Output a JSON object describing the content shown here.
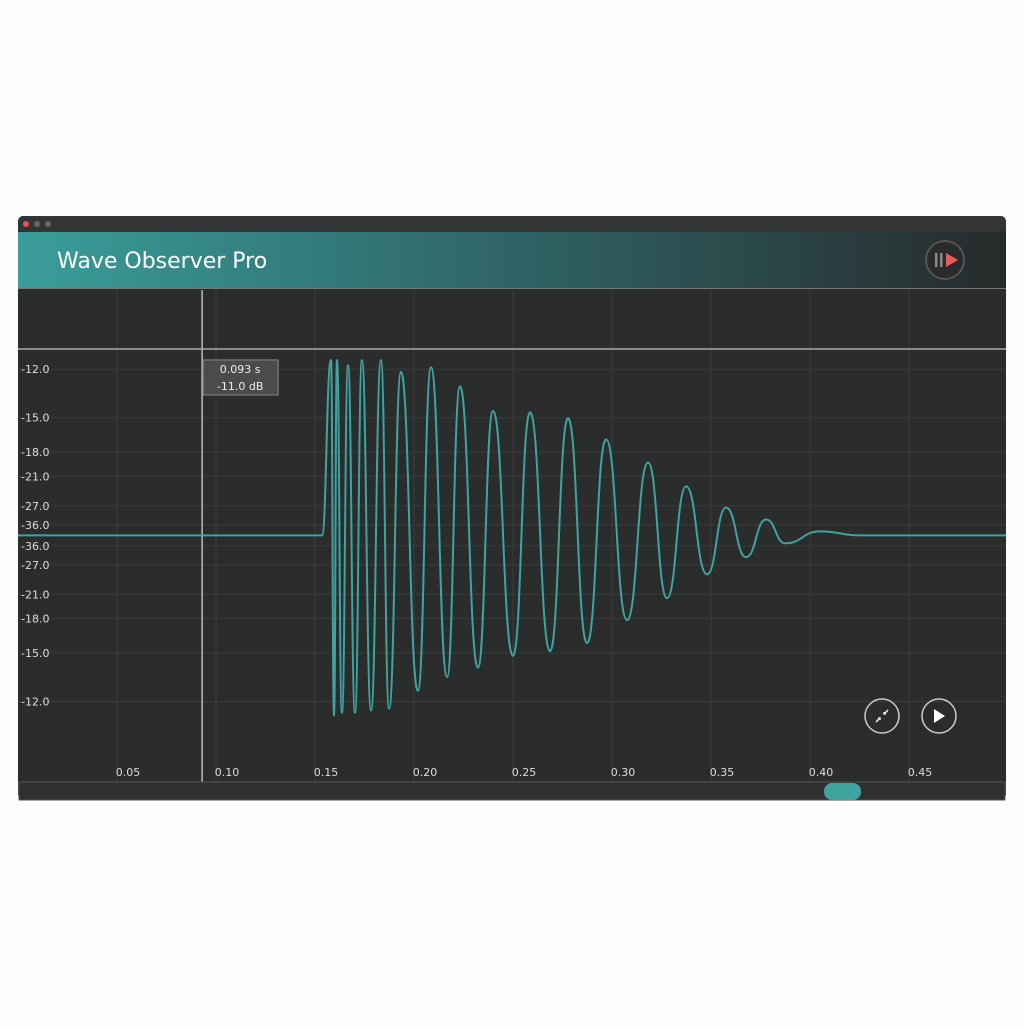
{
  "window": {
    "title": "Wave Observer Pro"
  },
  "chart_data": {
    "type": "line",
    "color": "#3fa3a0",
    "xlim": [
      0,
      0.5
    ],
    "xticks": [
      0.05,
      {
        "value": 0.1,
        "label": "0.10"
      },
      0.15,
      {
        "value": 0.2,
        "label": "0.20"
      },
      0.25,
      {
        "value": 0.3,
        "label": "0.30"
      },
      0.35,
      {
        "value": 0.4,
        "label": "0.40"
      },
      0.45
    ],
    "ylim": [
      -0.373,
      0.371
    ],
    "yticks_upper": [
      {
        "value": -12,
        "label": "-12.0"
      },
      {
        "value": -15,
        "label": "-15.0"
      },
      {
        "value": -18,
        "label": "-18.0"
      },
      {
        "value": -21,
        "label": "-21.0"
      },
      {
        "value": -27,
        "label": "-27.0"
      },
      {
        "value": -36,
        "label": "-36.0"
      }
    ],
    "yticks_lower": [
      {
        "value": -36,
        "label": "-36.0"
      },
      {
        "value": -27,
        "label": "-27.0"
      },
      {
        "value": -21,
        "label": "-21.0"
      },
      {
        "value": -18,
        "label": "-18.0"
      },
      {
        "value": -15,
        "label": "-15.0"
      },
      {
        "value": -12,
        "label": "-12.0"
      }
    ],
    "grid": true,
    "x": [
      0,
      0.1535,
      0.1581,
      0.1596,
      0.1611,
      0.1636,
      0.1667,
      0.1702,
      0.1737,
      0.1783,
      0.1833,
      0.1874,
      0.1934,
      0.202,
      0.2086,
      0.2167,
      0.2232,
      0.2323,
      0.2399,
      0.25,
      0.2586,
      0.2687,
      0.2778,
      0.2874,
      0.297,
      0.3076,
      0.3182,
      0.3278,
      0.3374,
      0.348,
      0.3576,
      0.3677,
      0.3778,
      0.3874,
      0.4051,
      0.4253,
      0.5
    ],
    "values": [
      0,
      0,
      0.265,
      -0.272,
      0.265,
      -0.268,
      0.257,
      -0.268,
      0.265,
      -0.265,
      0.265,
      -0.262,
      0.247,
      -0.235,
      0.254,
      -0.214,
      0.225,
      -0.2,
      0.188,
      -0.182,
      0.186,
      -0.175,
      0.177,
      -0.163,
      0.145,
      -0.128,
      0.11,
      -0.095,
      0.074,
      -0.059,
      0.042,
      -0.033,
      0.024,
      -0.012,
      0.006,
      0,
      0
    ],
    "cursor": {
      "time": 0.093,
      "time_label": "0.093 s",
      "level": -11.0,
      "level_label": "-11.0 dB"
    }
  }
}
